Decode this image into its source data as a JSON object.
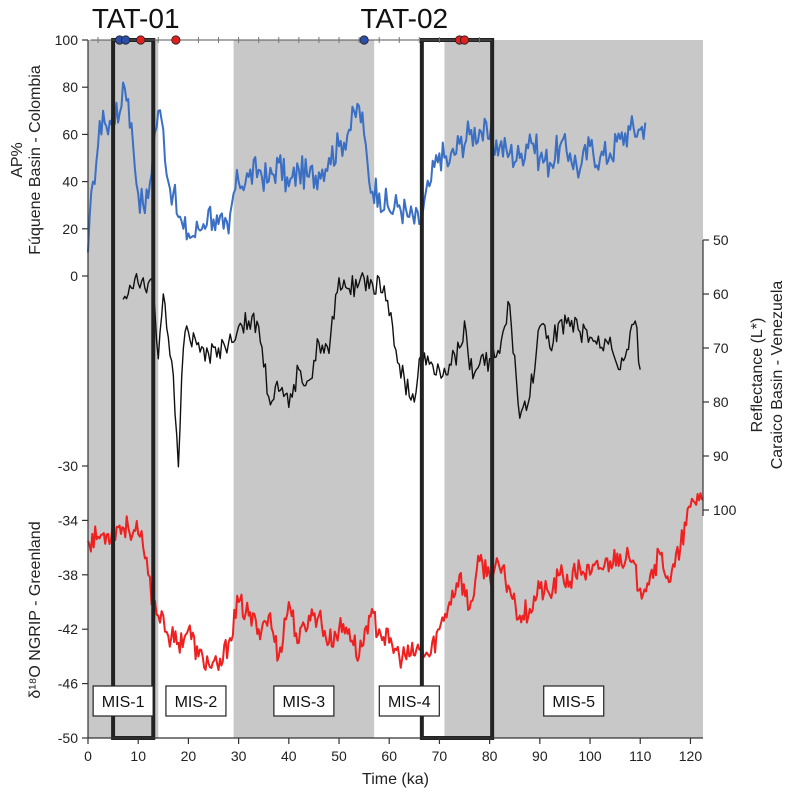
{
  "chart_data": {
    "type": "line",
    "x_axis": {
      "label": "Time (ka)",
      "range": [
        0,
        122.5
      ],
      "ticks": [
        0,
        10,
        20,
        30,
        40,
        50,
        60,
        70,
        80,
        90,
        100,
        110,
        120
      ]
    },
    "left_axis_top": {
      "label_line1": "AP%",
      "label_line2": "Fúquene Basin - Colombia",
      "ticks": [
        0,
        20,
        40,
        60,
        80,
        100
      ],
      "range": [
        0,
        100
      ]
    },
    "right_axis": {
      "label_line1": "Reflectance  (L*)",
      "label_line2": "Caraico Basin - Venezuela",
      "ticks": [
        50,
        60,
        70,
        80,
        90,
        100
      ],
      "range": [
        50,
        100
      ]
    },
    "left_axis_bottom": {
      "label": "δ¹⁸O NGRIP - Greenland",
      "ticks": [
        -30,
        -34,
        -38,
        -42,
        -46,
        -50
      ],
      "range": [
        -50,
        -30
      ]
    },
    "tephra_labels": [
      {
        "label": "TAT-01",
        "x": 9.5
      },
      {
        "label": "TAT-02",
        "x": 63
      }
    ],
    "marine_isotope_stages": [
      {
        "label": "MIS-1",
        "start": 0,
        "end": 14,
        "shaded": true
      },
      {
        "label": "MIS-2",
        "start": 14,
        "end": 29,
        "shaded": false
      },
      {
        "label": "MIS-3",
        "start": 29,
        "end": 57,
        "shaded": true
      },
      {
        "label": "MIS-4",
        "start": 57,
        "end": 71,
        "shaded": false
      },
      {
        "label": "MIS-5",
        "start": 71,
        "end": 122.5,
        "shaded": true
      }
    ],
    "tat_boxes": [
      {
        "label": "TAT-01",
        "start": 5,
        "end": 13
      },
      {
        "label": "TAT-02",
        "start": 66.5,
        "end": 80.5
      }
    ],
    "age_markers": [
      {
        "x": 6.3,
        "color": "#2b4fa8"
      },
      {
        "x": 7.5,
        "color": "#2b4fa8"
      },
      {
        "x": 10.5,
        "color": "#e02020"
      },
      {
        "x": 17.5,
        "color": "#e02020"
      },
      {
        "x": 55,
        "color": "#2b4fa8"
      },
      {
        "x": 74,
        "color": "#e02020"
      },
      {
        "x": 75,
        "color": "#e02020"
      }
    ],
    "series": [
      {
        "name": "AP%",
        "color": "#3a6fc4",
        "axis": "left_top",
        "x": [
          0,
          1,
          2,
          3,
          4,
          5,
          6,
          7,
          8,
          9,
          10,
          11,
          12,
          13,
          14,
          15,
          16,
          17,
          18,
          19,
          20,
          21,
          22,
          23,
          24,
          25,
          26,
          27,
          28,
          29,
          30,
          32,
          34,
          36,
          38,
          40,
          42,
          44,
          46,
          48,
          50,
          52,
          54,
          55,
          56,
          58,
          60,
          62,
          64,
          66,
          68,
          70,
          72,
          74,
          76,
          78,
          80,
          82,
          84,
          86,
          88,
          90,
          92,
          94,
          96,
          98,
          100,
          102,
          104,
          106,
          108,
          110,
          111
        ],
        "y": [
          10,
          40,
          55,
          70,
          60,
          72,
          65,
          82,
          75,
          55,
          35,
          30,
          33,
          55,
          70,
          62,
          40,
          35,
          25,
          20,
          18,
          17,
          20,
          22,
          28,
          24,
          22,
          20,
          18,
          35,
          40,
          42,
          45,
          40,
          48,
          38,
          45,
          42,
          44,
          50,
          55,
          62,
          72,
          60,
          40,
          35,
          28,
          30,
          25,
          22,
          38,
          52,
          48,
          56,
          60,
          62,
          58,
          55,
          52,
          50,
          60,
          50,
          48,
          55,
          52,
          45,
          55,
          50,
          52,
          58,
          62,
          62,
          65
        ]
      },
      {
        "name": "Reflectance",
        "color": "#111111",
        "axis": "right",
        "x": [
          7,
          8,
          9,
          10,
          11,
          12,
          13,
          14,
          15,
          16,
          17,
          18,
          19,
          20,
          22,
          24,
          26,
          28,
          30,
          32,
          34,
          36,
          38,
          40,
          42,
          44,
          46,
          48,
          50,
          52,
          54,
          55,
          56,
          57,
          58,
          60,
          62,
          64,
          65,
          66,
          68,
          70,
          72,
          74,
          75,
          76,
          78,
          80,
          82,
          84,
          86,
          88,
          90,
          92,
          94,
          96,
          98,
          100,
          102,
          104,
          106,
          108,
          109,
          110
        ],
        "y": [
          61,
          60,
          59,
          58,
          57,
          58,
          59,
          72,
          60,
          68,
          75,
          92,
          70,
          67,
          69,
          71,
          70,
          69,
          66,
          65,
          66,
          79,
          78,
          81,
          74,
          76,
          69,
          71,
          57,
          59,
          58,
          57,
          59,
          60,
          57,
          64,
          73,
          79,
          80,
          72,
          73,
          74,
          73,
          70,
          65,
          74,
          73,
          72,
          71,
          62,
          83,
          79,
          66,
          70,
          65,
          66,
          67,
          68,
          70,
          68,
          74,
          67,
          65,
          74
        ]
      },
      {
        "name": "δ18O NGRIP",
        "color": "#ee2020",
        "axis": "left_bottom",
        "x": [
          0,
          2,
          4,
          6,
          8,
          10,
          11,
          12,
          13,
          14,
          15,
          16,
          18,
          20,
          22,
          24,
          26,
          28,
          30,
          32,
          34,
          36,
          38,
          40,
          42,
          44,
          46,
          48,
          50,
          52,
          54,
          56,
          58,
          60,
          62,
          64,
          66,
          68,
          70,
          72,
          74,
          76,
          78,
          80,
          82,
          84,
          86,
          88,
          90,
          92,
          94,
          96,
          98,
          100,
          102,
          104,
          106,
          108,
          110,
          112,
          114,
          116,
          118,
          120,
          122,
          122.5
        ],
        "y": [
          -35.5,
          -35.2,
          -35,
          -34.5,
          -34.5,
          -35,
          -36,
          -38,
          -40,
          -41,
          -41,
          -42.5,
          -43,
          -42,
          -44,
          -44.5,
          -45,
          -43,
          -40,
          -41,
          -42,
          -41,
          -44,
          -40,
          -43,
          -41,
          -41,
          -43,
          -42,
          -42,
          -44,
          -41,
          -42,
          -43,
          -44,
          -44,
          -43.5,
          -44,
          -42,
          -40,
          -38,
          -40.5,
          -37,
          -38,
          -37.5,
          -39,
          -41,
          -40.5,
          -39,
          -39.5,
          -38,
          -38.5,
          -37.5,
          -38,
          -37.5,
          -37,
          -36.5,
          -37,
          -39,
          -38,
          -36.5,
          -38.5,
          -36,
          -33,
          -32,
          -32.5
        ]
      }
    ]
  }
}
